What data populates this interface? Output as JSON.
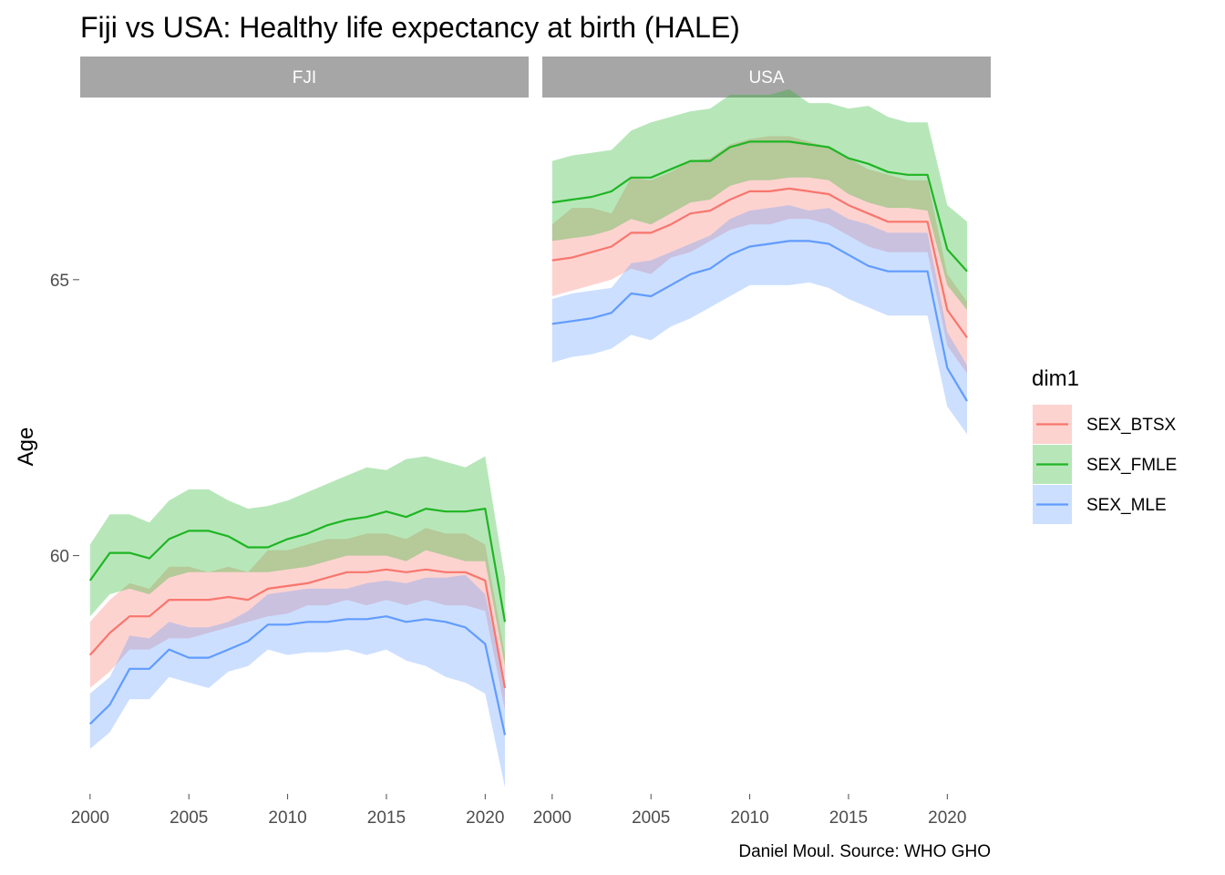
{
  "chart_data": {
    "type": "line",
    "title": "Fiji vs USA: Healthy life expectancy at birth (HALE)",
    "ylabel": "Age",
    "xlabel": "",
    "caption": "Daniel Moul. Source: WHO GHO",
    "legend_title": "dim1",
    "legend_position": "right",
    "grid": false,
    "xlim": [
      1999.5,
      2022.2
    ],
    "ylim": [
      55.7,
      68.3
    ],
    "x_ticks": [
      2000,
      2005,
      2010,
      2015,
      2020
    ],
    "x_tick_labels": [
      "2000",
      "2005",
      "2010",
      "2015",
      "2020"
    ],
    "y_ticks": [
      60,
      65
    ],
    "y_tick_labels": [
      "60",
      "65"
    ],
    "x": [
      2000,
      2001,
      2002,
      2003,
      2004,
      2005,
      2006,
      2007,
      2008,
      2009,
      2010,
      2011,
      2012,
      2013,
      2014,
      2015,
      2016,
      2017,
      2018,
      2019,
      2020,
      2021
    ],
    "colors": {
      "SEX_BTSX": "#f8766d",
      "SEX_FMLE": "#1fb524",
      "SEX_MLE": "#619cff",
      "strip": "#a6a6a6"
    },
    "legend": [
      {
        "key": "SEX_BTSX",
        "label": "SEX_BTSX"
      },
      {
        "key": "SEX_FMLE",
        "label": "SEX_FMLE"
      },
      {
        "key": "SEX_MLE",
        "label": "SEX_MLE"
      }
    ],
    "panels": [
      {
        "strip": "FJI",
        "series": [
          {
            "key": "SEX_BTSX",
            "values": [
              58.2,
              58.6,
              58.9,
              58.9,
              59.2,
              59.2,
              59.2,
              59.25,
              59.2,
              59.4,
              59.45,
              59.5,
              59.6,
              59.7,
              59.7,
              59.75,
              59.7,
              59.75,
              59.7,
              59.7,
              59.55,
              57.6
            ],
            "lower": [
              57.6,
              57.9,
              58.3,
              58.3,
              58.5,
              58.5,
              58.6,
              58.7,
              58.8,
              58.9,
              58.95,
              59.1,
              59.1,
              59.2,
              59.1,
              59.2,
              59.1,
              59.2,
              59.1,
              59.1,
              59.0,
              57.2
            ],
            "upper": [
              58.8,
              59.2,
              59.5,
              59.4,
              59.8,
              59.8,
              59.7,
              59.8,
              59.7,
              60.1,
              60.1,
              60.2,
              60.3,
              60.3,
              60.4,
              60.4,
              60.3,
              60.5,
              60.4,
              60.4,
              60.2,
              58.2
            ]
          },
          {
            "key": "SEX_FMLE",
            "values": [
              59.55,
              60.05,
              60.05,
              59.95,
              60.3,
              60.45,
              60.45,
              60.35,
              60.15,
              60.15,
              60.3,
              60.4,
              60.55,
              60.65,
              60.7,
              60.8,
              60.7,
              60.85,
              60.8,
              60.8,
              60.85,
              58.8
            ],
            "lower": [
              58.9,
              59.3,
              59.4,
              59.3,
              59.6,
              59.7,
              59.7,
              59.7,
              59.7,
              59.7,
              59.75,
              59.8,
              59.9,
              60.0,
              60.0,
              60.0,
              59.9,
              60.1,
              60.0,
              59.9,
              59.9,
              58.0
            ],
            "upper": [
              60.2,
              60.75,
              60.75,
              60.6,
              61.0,
              61.2,
              61.2,
              61.0,
              60.85,
              60.9,
              61.0,
              61.15,
              61.3,
              61.45,
              61.6,
              61.55,
              61.75,
              61.8,
              61.7,
              61.6,
              61.8,
              59.6
            ]
          },
          {
            "key": "SEX_MLE",
            "values": [
              56.95,
              57.3,
              57.95,
              57.95,
              58.3,
              58.15,
              58.15,
              58.3,
              58.45,
              58.75,
              58.75,
              58.8,
              58.8,
              58.85,
              58.85,
              58.9,
              58.8,
              58.85,
              58.8,
              58.7,
              58.4,
              56.75
            ],
            "lower": [
              56.5,
              56.8,
              57.4,
              57.4,
              57.8,
              57.7,
              57.6,
              57.9,
              58.0,
              58.3,
              58.2,
              58.25,
              58.25,
              58.3,
              58.2,
              58.3,
              58.1,
              58.0,
              57.8,
              57.7,
              57.5,
              55.8
            ],
            "upper": [
              57.5,
              57.8,
              58.55,
              58.5,
              58.8,
              58.7,
              58.7,
              58.8,
              59.0,
              59.3,
              59.35,
              59.4,
              59.4,
              59.4,
              59.5,
              59.55,
              59.5,
              59.6,
              59.6,
              59.65,
              59.3,
              57.7
            ]
          }
        ]
      },
      {
        "strip": "USA",
        "series": [
          {
            "key": "SEX_BTSX",
            "values": [
              65.35,
              65.4,
              65.5,
              65.6,
              65.85,
              65.85,
              66.0,
              66.2,
              66.25,
              66.45,
              66.6,
              66.6,
              66.65,
              66.6,
              66.55,
              66.35,
              66.2,
              66.05,
              66.05,
              66.05,
              64.45,
              63.95
            ],
            "lower": [
              64.7,
              64.8,
              64.9,
              65.0,
              65.2,
              65.1,
              65.4,
              65.5,
              65.7,
              65.9,
              66.0,
              66.0,
              66.1,
              66.1,
              66.0,
              65.8,
              65.6,
              65.5,
              65.5,
              65.5,
              63.8,
              63.3
            ],
            "upper": [
              66.0,
              66.3,
              66.3,
              66.2,
              66.85,
              66.8,
              66.95,
              67.15,
              67.2,
              67.45,
              67.55,
              67.6,
              67.6,
              67.5,
              67.4,
              67.2,
              67.0,
              66.9,
              66.8,
              66.8,
              65.1,
              64.6
            ]
          },
          {
            "key": "SEX_FMLE",
            "values": [
              66.4,
              66.45,
              66.5,
              66.6,
              66.85,
              66.85,
              67.0,
              67.15,
              67.15,
              67.4,
              67.5,
              67.5,
              67.5,
              67.45,
              67.4,
              67.2,
              67.1,
              66.95,
              66.9,
              66.9,
              65.55,
              65.15
            ],
            "lower": [
              65.7,
              65.75,
              65.8,
              65.9,
              66.1,
              66.0,
              66.2,
              66.4,
              66.45,
              66.7,
              66.8,
              66.8,
              66.85,
              66.85,
              66.8,
              66.55,
              66.4,
              66.3,
              66.3,
              66.25,
              64.9,
              64.45
            ],
            "upper": [
              67.15,
              67.25,
              67.3,
              67.35,
              67.7,
              67.85,
              67.95,
              68.05,
              68.1,
              68.35,
              68.35,
              68.35,
              68.45,
              68.2,
              68.2,
              68.1,
              68.15,
              67.95,
              67.85,
              67.85,
              66.35,
              66.05
            ]
          },
          {
            "key": "SEX_MLE",
            "values": [
              64.2,
              64.25,
              64.3,
              64.4,
              64.75,
              64.7,
              64.9,
              65.1,
              65.2,
              65.45,
              65.6,
              65.65,
              65.7,
              65.7,
              65.65,
              65.45,
              65.25,
              65.15,
              65.15,
              65.15,
              63.4,
              62.8
            ],
            "lower": [
              63.5,
              63.6,
              63.65,
              63.75,
              64.0,
              63.9,
              64.15,
              64.3,
              64.5,
              64.7,
              64.9,
              64.9,
              64.9,
              64.95,
              64.85,
              64.65,
              64.5,
              64.35,
              64.35,
              64.35,
              62.7,
              62.2
            ],
            "upper": [
              64.65,
              64.75,
              64.8,
              64.85,
              65.3,
              65.35,
              65.5,
              65.65,
              65.8,
              66.1,
              66.25,
              66.3,
              66.35,
              66.25,
              66.3,
              66.1,
              66.0,
              65.85,
              65.85,
              65.85,
              64.05,
              63.45
            ]
          }
        ]
      }
    ]
  }
}
